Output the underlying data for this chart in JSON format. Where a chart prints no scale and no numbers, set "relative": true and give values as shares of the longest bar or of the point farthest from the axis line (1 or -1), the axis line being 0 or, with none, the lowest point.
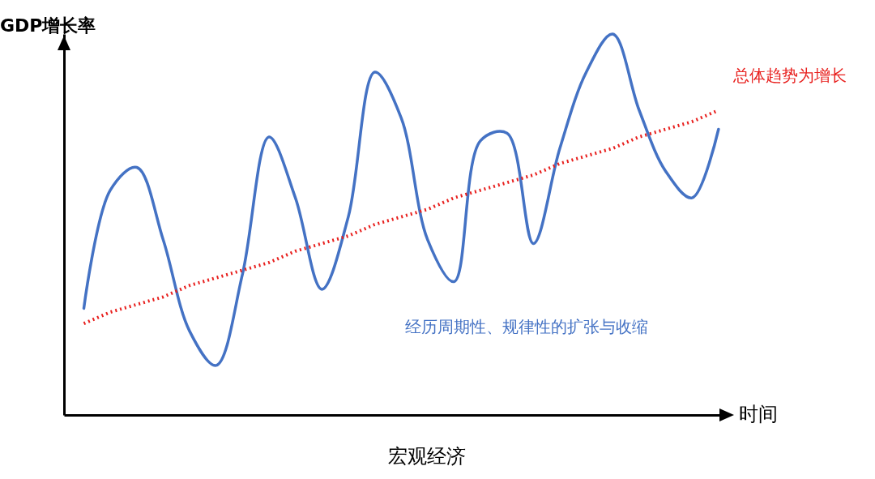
{
  "chart_data": {
    "type": "line",
    "title": "宏观经济",
    "xlabel": "时间",
    "ylabel": "GDP增长率",
    "relative": true,
    "categories": [
      null,
      null,
      null,
      null,
      null,
      null,
      null,
      null,
      null,
      null,
      null,
      null,
      null,
      null,
      null,
      null,
      null,
      null,
      null,
      null,
      null,
      null,
      null,
      null,
      null
    ],
    "series": [
      {
        "color": "#4472c4",
        "line_style": "solid",
        "values": [
          0.28,
          0.59,
          0.65,
          0.46,
          0.22,
          0.13,
          0.37,
          0.73,
          0.57,
          0.33,
          0.52,
          0.9,
          0.78,
          0.46,
          0.35,
          0.72,
          0.74,
          0.45,
          0.7,
          0.9,
          1.0,
          0.8,
          0.64,
          0.57,
          0.75
        ]
      },
      {
        "color": "#e8201e",
        "line_style": "dotted",
        "values": [
          0.24,
          0.27,
          0.29,
          0.31,
          0.34,
          0.36,
          0.38,
          0.4,
          0.43,
          0.45,
          0.47,
          0.5,
          0.52,
          0.54,
          0.57,
          0.59,
          0.61,
          0.63,
          0.66,
          0.68,
          0.7,
          0.73,
          0.75,
          0.77,
          0.8
        ]
      }
    ],
    "annotations": [
      "总体趋势为增长",
      "经历周期性、规律性的扩张与收缩"
    ],
    "grid": false
  }
}
